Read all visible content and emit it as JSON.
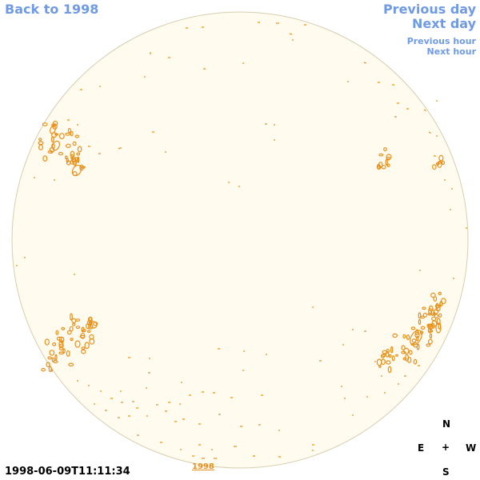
{
  "nav": {
    "back_label": "Back to 1998",
    "prev_day_label": "Previous day",
    "next_day_label": "Next day",
    "prev_hour_label": "Previous hour",
    "next_hour_label": "Next hour"
  },
  "timestamp": "1998-06-09T11:11:34",
  "year_label": "1998",
  "compass": {
    "north": "N",
    "east": "E",
    "center": "+",
    "west": "W",
    "south": "S"
  },
  "colors": {
    "disk_fill": "#fffbee",
    "disk_edge": "#d8cdb0",
    "contour": "#e8901a",
    "link": "#6f9ae6"
  }
}
